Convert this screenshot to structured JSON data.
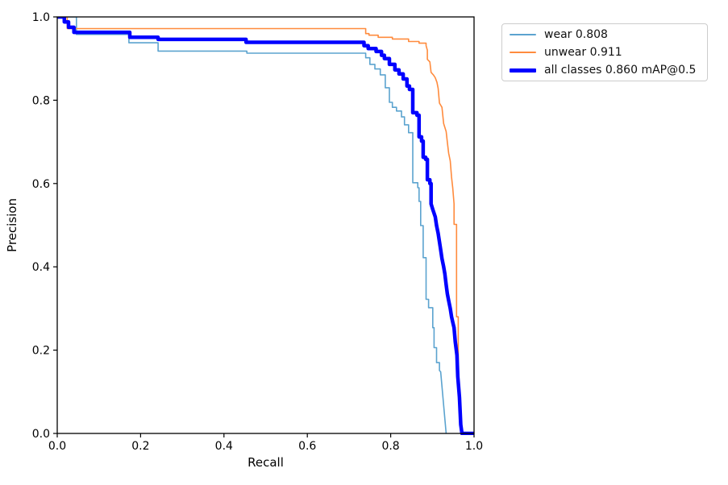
{
  "figure": {
    "background": "#ffffff",
    "axes_color": "#000000"
  },
  "chart_data": {
    "type": "line",
    "subtype": "precision-recall-curve",
    "xlabel": "Recall",
    "ylabel": "Precision",
    "xlim": [
      0.0,
      1.0
    ],
    "ylim": [
      0.0,
      1.0
    ],
    "xticks": [
      "0.0",
      "0.2",
      "0.4",
      "0.6",
      "0.8",
      "1.0"
    ],
    "yticks": [
      "0.0",
      "0.2",
      "0.4",
      "0.6",
      "0.8",
      "1.0"
    ],
    "grid": false,
    "legend_position": "upper-right-outside",
    "series": [
      {
        "name": "wear",
        "label": "wear 0.808",
        "color": "#5ba3cf",
        "linewidth": 1.6,
        "points": [
          [
            0.0,
            1.0
          ],
          [
            0.046,
            1.0
          ],
          [
            0.046,
            0.958
          ],
          [
            0.172,
            0.958
          ],
          [
            0.172,
            0.938
          ],
          [
            0.242,
            0.938
          ],
          [
            0.242,
            0.918
          ],
          [
            0.455,
            0.918
          ],
          [
            0.455,
            0.913
          ],
          [
            0.74,
            0.913
          ],
          [
            0.74,
            0.902
          ],
          [
            0.75,
            0.902
          ],
          [
            0.75,
            0.886
          ],
          [
            0.762,
            0.886
          ],
          [
            0.762,
            0.875
          ],
          [
            0.775,
            0.875
          ],
          [
            0.775,
            0.861
          ],
          [
            0.787,
            0.861
          ],
          [
            0.787,
            0.83
          ],
          [
            0.797,
            0.83
          ],
          [
            0.797,
            0.795
          ],
          [
            0.804,
            0.795
          ],
          [
            0.804,
            0.783
          ],
          [
            0.814,
            0.783
          ],
          [
            0.814,
            0.774
          ],
          [
            0.826,
            0.774
          ],
          [
            0.826,
            0.76
          ],
          [
            0.833,
            0.76
          ],
          [
            0.833,
            0.741
          ],
          [
            0.843,
            0.741
          ],
          [
            0.843,
            0.722
          ],
          [
            0.853,
            0.722
          ],
          [
            0.853,
            0.602
          ],
          [
            0.865,
            0.602
          ],
          [
            0.865,
            0.59
          ],
          [
            0.868,
            0.59
          ],
          [
            0.868,
            0.557
          ],
          [
            0.872,
            0.557
          ],
          [
            0.872,
            0.499
          ],
          [
            0.878,
            0.499
          ],
          [
            0.878,
            0.422
          ],
          [
            0.885,
            0.422
          ],
          [
            0.885,
            0.322
          ],
          [
            0.891,
            0.322
          ],
          [
            0.891,
            0.302
          ],
          [
            0.901,
            0.302
          ],
          [
            0.901,
            0.254
          ],
          [
            0.904,
            0.254
          ],
          [
            0.904,
            0.206
          ],
          [
            0.91,
            0.206
          ],
          [
            0.91,
            0.17
          ],
          [
            0.917,
            0.17
          ],
          [
            0.917,
            0.151
          ],
          [
            0.92,
            0.148
          ],
          [
            0.933,
            0.0
          ]
        ]
      },
      {
        "name": "unwear",
        "label": "unwear 0.911",
        "color": "#ff8b3d",
        "linewidth": 1.6,
        "points": [
          [
            0.0,
            1.0
          ],
          [
            0.024,
            1.0
          ],
          [
            0.024,
            0.972
          ],
          [
            0.74,
            0.972
          ],
          [
            0.74,
            0.96
          ],
          [
            0.748,
            0.96
          ],
          [
            0.748,
            0.956
          ],
          [
            0.77,
            0.956
          ],
          [
            0.77,
            0.951
          ],
          [
            0.804,
            0.951
          ],
          [
            0.804,
            0.947
          ],
          [
            0.843,
            0.947
          ],
          [
            0.843,
            0.941
          ],
          [
            0.868,
            0.941
          ],
          [
            0.868,
            0.937
          ],
          [
            0.885,
            0.937
          ],
          [
            0.885,
            0.931
          ],
          [
            0.888,
            0.92
          ],
          [
            0.888,
            0.898
          ],
          [
            0.894,
            0.892
          ],
          [
            0.897,
            0.867
          ],
          [
            0.903,
            0.86
          ],
          [
            0.907,
            0.854
          ],
          [
            0.911,
            0.843
          ],
          [
            0.914,
            0.828
          ],
          [
            0.917,
            0.793
          ],
          [
            0.923,
            0.783
          ],
          [
            0.927,
            0.744
          ],
          [
            0.933,
            0.725
          ],
          [
            0.936,
            0.699
          ],
          [
            0.939,
            0.673
          ],
          [
            0.943,
            0.654
          ],
          [
            0.946,
            0.615
          ],
          [
            0.949,
            0.589
          ],
          [
            0.952,
            0.551
          ],
          [
            0.952,
            0.502
          ],
          [
            0.958,
            0.502
          ],
          [
            0.958,
            0.28
          ],
          [
            0.962,
            0.28
          ],
          [
            0.962,
            0.12
          ],
          [
            0.966,
            0.05
          ],
          [
            0.968,
            0.0
          ]
        ]
      },
      {
        "name": "all-classes",
        "label": "all classes 0.860 mAP@0.5",
        "color": "#0000ff",
        "linewidth": 4.5,
        "points": [
          [
            0.0,
            1.0
          ],
          [
            0.017,
            1.0
          ],
          [
            0.017,
            0.988
          ],
          [
            0.027,
            0.988
          ],
          [
            0.027,
            0.975
          ],
          [
            0.04,
            0.975
          ],
          [
            0.04,
            0.963
          ],
          [
            0.174,
            0.963
          ],
          [
            0.174,
            0.951
          ],
          [
            0.242,
            0.951
          ],
          [
            0.242,
            0.946
          ],
          [
            0.453,
            0.946
          ],
          [
            0.453,
            0.939
          ],
          [
            0.736,
            0.939
          ],
          [
            0.736,
            0.931
          ],
          [
            0.746,
            0.931
          ],
          [
            0.746,
            0.924
          ],
          [
            0.765,
            0.924
          ],
          [
            0.765,
            0.917
          ],
          [
            0.778,
            0.917
          ],
          [
            0.778,
            0.908
          ],
          [
            0.785,
            0.908
          ],
          [
            0.785,
            0.9
          ],
          [
            0.797,
            0.9
          ],
          [
            0.797,
            0.886
          ],
          [
            0.81,
            0.886
          ],
          [
            0.81,
            0.873
          ],
          [
            0.82,
            0.873
          ],
          [
            0.82,
            0.863
          ],
          [
            0.83,
            0.863
          ],
          [
            0.83,
            0.851
          ],
          [
            0.839,
            0.851
          ],
          [
            0.839,
            0.834
          ],
          [
            0.845,
            0.834
          ],
          [
            0.845,
            0.826
          ],
          [
            0.853,
            0.826
          ],
          [
            0.853,
            0.77
          ],
          [
            0.863,
            0.77
          ],
          [
            0.863,
            0.764
          ],
          [
            0.868,
            0.764
          ],
          [
            0.868,
            0.712
          ],
          [
            0.874,
            0.712
          ],
          [
            0.874,
            0.702
          ],
          [
            0.878,
            0.702
          ],
          [
            0.878,
            0.663
          ],
          [
            0.884,
            0.663
          ],
          [
            0.884,
            0.658
          ],
          [
            0.888,
            0.658
          ],
          [
            0.888,
            0.609
          ],
          [
            0.894,
            0.609
          ],
          [
            0.894,
            0.6
          ],
          [
            0.897,
            0.6
          ],
          [
            0.897,
            0.551
          ],
          [
            0.901,
            0.538
          ],
          [
            0.907,
            0.52
          ],
          [
            0.91,
            0.499
          ],
          [
            0.914,
            0.48
          ],
          [
            0.917,
            0.46
          ],
          [
            0.92,
            0.441
          ],
          [
            0.923,
            0.42
          ],
          [
            0.927,
            0.4
          ],
          [
            0.93,
            0.383
          ],
          [
            0.933,
            0.357
          ],
          [
            0.936,
            0.335
          ],
          [
            0.939,
            0.319
          ],
          [
            0.943,
            0.3
          ],
          [
            0.946,
            0.28
          ],
          [
            0.949,
            0.267
          ],
          [
            0.952,
            0.254
          ],
          [
            0.955,
            0.22
          ],
          [
            0.959,
            0.188
          ],
          [
            0.961,
            0.137
          ],
          [
            0.965,
            0.087
          ],
          [
            0.968,
            0.021
          ],
          [
            0.971,
            0.0
          ],
          [
            1.0,
            0.0
          ]
        ]
      }
    ]
  }
}
